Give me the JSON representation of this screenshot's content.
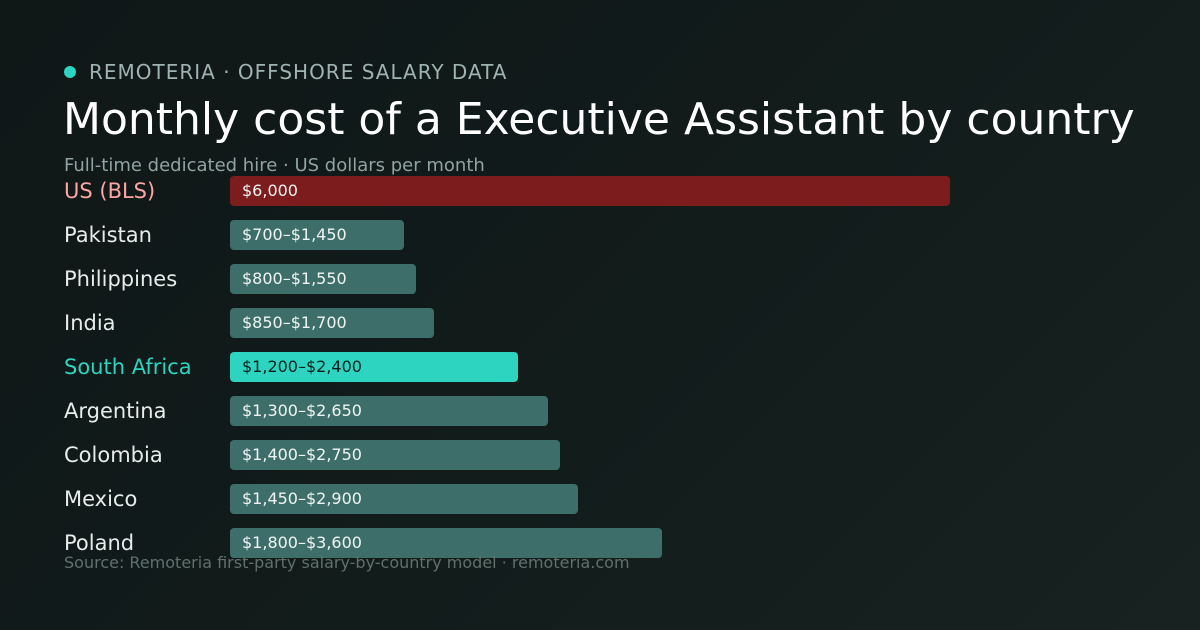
{
  "brand": {
    "text": "REMOTERIA · OFFSHORE SALARY DATA"
  },
  "header": {
    "title": "Monthly cost of a Executive Assistant by country",
    "subtitle": "Full-time dedicated hire · US dollars per month"
  },
  "footer": {
    "source": "Source: Remoteria first-party salary-by-country model · remoteria.com"
  },
  "colors": {
    "baseline_bar": "#7c1c1c",
    "default_bar": "#3e6e6a",
    "highlight_bar": "#2dd4bf",
    "accent": "#2dd4bf"
  },
  "chart_data": {
    "type": "bar",
    "orientation": "horizontal",
    "categories": [
      "US (BLS)",
      "Pakistan",
      "Philippines",
      "India",
      "South Africa",
      "Argentina",
      "Colombia",
      "Mexico",
      "Poland"
    ],
    "low": [
      6000,
      700,
      800,
      850,
      1200,
      1300,
      1400,
      1450,
      1800
    ],
    "high": [
      6000,
      1450,
      1550,
      1700,
      2400,
      2650,
      2750,
      2900,
      3600
    ],
    "labels": [
      "$6,000",
      "$700–$1,450",
      "$800–$1,550",
      "$850–$1,700",
      "$1,200–$2,400",
      "$1,300–$2,650",
      "$1,400–$2,750",
      "$1,450–$2,900",
      "$1,800–$3,600"
    ],
    "kinds": [
      "baseline",
      "normal",
      "normal",
      "normal",
      "highlight",
      "normal",
      "normal",
      "normal",
      "normal"
    ],
    "xlim": [
      0,
      6000
    ],
    "grid": false,
    "legend": "none"
  }
}
